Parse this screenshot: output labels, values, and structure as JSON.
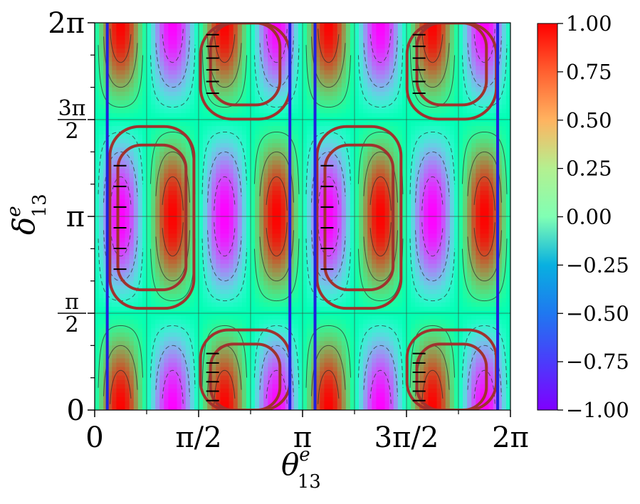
{
  "chart_data": {
    "type": "heatmap",
    "title": "",
    "xlabel": "θ",
    "xlabel_sup": "e",
    "xlabel_sub": "13",
    "ylabel": "δ",
    "ylabel_sup": "e",
    "ylabel_sub": "13",
    "xlim": [
      0,
      6.2832
    ],
    "ylim": [
      0,
      6.2832
    ],
    "x_ticks": [
      {
        "value": 0,
        "label": "0"
      },
      {
        "value": 1.5708,
        "label": "π/2"
      },
      {
        "value": 3.1416,
        "label": "π"
      },
      {
        "value": 4.7124,
        "label": "3π/2"
      },
      {
        "value": 6.2832,
        "label": "2π"
      }
    ],
    "y_ticks": [
      {
        "value": 0,
        "label": "0"
      },
      {
        "value": 1.5708,
        "label": "π",
        "label_den": "2"
      },
      {
        "value": 3.1416,
        "label": "π"
      },
      {
        "value": 4.7124,
        "label": "3π",
        "label_den": "2"
      },
      {
        "value": 6.2832,
        "label": "2π"
      }
    ],
    "colorbar": {
      "colormap": "rainbow",
      "range": [
        -1.0,
        1.0
      ],
      "ticks": [
        {
          "value": 1.0,
          "label": "1.00"
        },
        {
          "value": 0.75,
          "label": "0.75"
        },
        {
          "value": 0.5,
          "label": "0.50"
        },
        {
          "value": 0.25,
          "label": "0.25"
        },
        {
          "value": 0.0,
          "label": "0.00"
        },
        {
          "value": -0.25,
          "label": "−0.25"
        },
        {
          "value": -0.5,
          "label": "−0.50"
        },
        {
          "value": -0.75,
          "label": "−0.75"
        },
        {
          "value": -1.0,
          "label": "−1.00"
        }
      ]
    },
    "grid_lines_x": [
      0.7854,
      1.5708,
      2.3562,
      3.1416,
      3.927,
      4.7124,
      5.4978
    ],
    "grid_lines_y": [
      1.5708,
      3.1416,
      4.7124
    ],
    "blue_vertical_lines_x": [
      0.19,
      2.95,
      3.33,
      6.09
    ],
    "contour_levels_solid": [
      0.2,
      0.5,
      0.8
    ],
    "contour_levels_dashed": [
      -0.2,
      -0.5,
      -0.8
    ],
    "brown_loops": [
      {
        "x": [
          0.23,
          1.5
        ],
        "y": [
          1.65,
          4.6
        ]
      },
      {
        "x": [
          0.35,
          1.38
        ],
        "y": [
          1.95,
          4.3
        ]
      },
      {
        "x": [
          3.36,
          4.63
        ],
        "y": [
          1.65,
          4.6
        ]
      },
      {
        "x": [
          3.48,
          4.51
        ],
        "y": [
          1.95,
          4.3
        ]
      },
      {
        "x": [
          1.6,
          2.95
        ],
        "y": [
          0,
          1.3
        ]
      },
      {
        "x": [
          1.75,
          2.8
        ],
        "y": [
          0,
          1.07
        ]
      },
      {
        "x": [
          4.72,
          6.07
        ],
        "y": [
          0,
          1.3
        ]
      },
      {
        "x": [
          4.87,
          5.92
        ],
        "y": [
          0,
          1.07
        ]
      },
      {
        "x": [
          1.6,
          2.95
        ],
        "y": [
          4.72,
          6.28
        ]
      },
      {
        "x": [
          1.75,
          2.8
        ],
        "y": [
          4.95,
          6.28
        ]
      },
      {
        "x": [
          4.72,
          6.07
        ],
        "y": [
          4.72,
          6.28
        ]
      },
      {
        "x": [
          4.87,
          5.92
        ],
        "y": [
          4.95,
          6.28
        ]
      }
    ],
    "colors": {
      "blue_lines": "#1f1fe0",
      "brown_loops": "#a0322e",
      "tick_marks": "#000000",
      "grid": "#3a4a3a"
    }
  }
}
